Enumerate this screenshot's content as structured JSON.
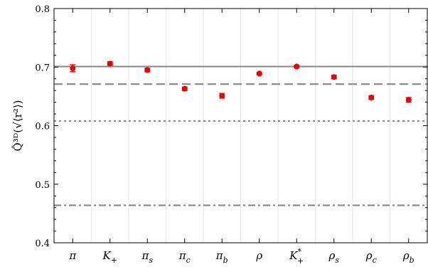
{
  "chart_data": {
    "type": "scatter",
    "ylabel": "Q̂³ᴰ(√⟨r²⟩)",
    "xlabel": "",
    "title": "",
    "ylim": [
      0.4,
      0.8
    ],
    "yticks": [
      "0.4",
      "0.5",
      "0.6",
      "0.7",
      "0.8"
    ],
    "yticks_values": [
      0.4,
      0.5,
      0.6,
      0.7,
      0.8
    ],
    "categories": [
      "π",
      "K₊",
      "πₛ",
      "π꜀",
      "π_b",
      "ρ",
      "K₊*",
      "ρₛ",
      "ρ꜀",
      "ρ_b"
    ],
    "category_display": [
      {
        "base": "π",
        "sub": "",
        "sup": ""
      },
      {
        "base": "K",
        "sub": "+",
        "sup": ""
      },
      {
        "base": "π",
        "sub": "s",
        "sup": ""
      },
      {
        "base": "π",
        "sub": "c",
        "sup": ""
      },
      {
        "base": "π",
        "sub": "b",
        "sup": ""
      },
      {
        "base": "ρ",
        "sub": "",
        "sup": ""
      },
      {
        "base": "K",
        "sub": "+",
        "sup": "*"
      },
      {
        "base": "ρ",
        "sub": "s",
        "sup": ""
      },
      {
        "base": "ρ",
        "sub": "c",
        "sup": ""
      },
      {
        "base": "ρ",
        "sub": "b",
        "sup": ""
      }
    ],
    "values": [
      0.698,
      0.706,
      0.695,
      0.663,
      0.651,
      0.689,
      0.701,
      0.683,
      0.648,
      0.644
    ],
    "errors": [
      0.006,
      0.003,
      0.003,
      0.003,
      0.004,
      0.002,
      0.002,
      0.003,
      0.003,
      0.004
    ],
    "point_color": "#ee0000",
    "reference_lines": [
      {
        "value": 0.701,
        "style": "solid",
        "color": "#8c8c8c"
      },
      {
        "value": 0.671,
        "style": "dashed",
        "color": "#8c8c8c"
      },
      {
        "value": 0.608,
        "style": "dotted",
        "color": "#8c8c8c"
      },
      {
        "value": 0.464,
        "style": "dashdot",
        "color": "#8c8c8c"
      }
    ],
    "grid": "vertical",
    "legend": "none"
  }
}
